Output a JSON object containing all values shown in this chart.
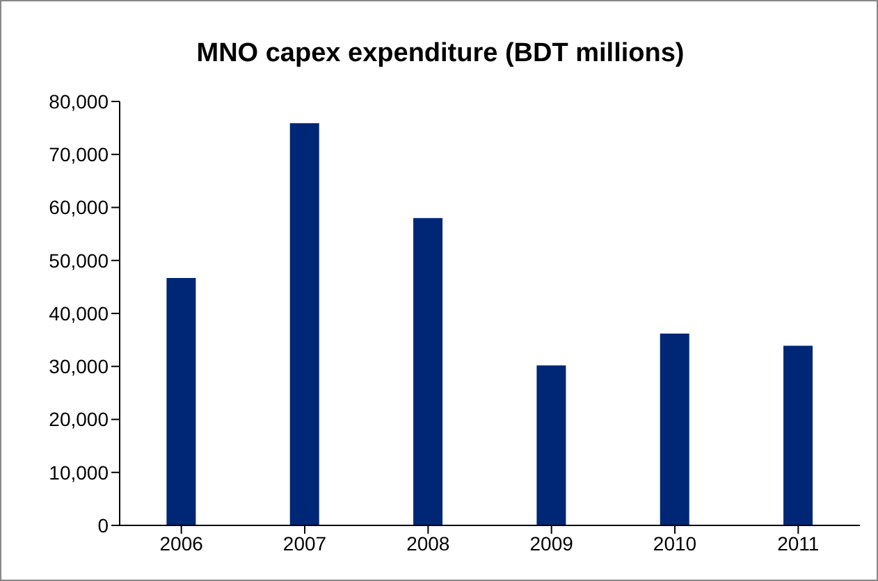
{
  "chart_data": {
    "type": "bar",
    "title": "MNO capex expenditure (BDT millions)",
    "categories": [
      "2006",
      "2007",
      "2008",
      "2009",
      "2010",
      "2011"
    ],
    "values": [
      46700,
      75900,
      58000,
      30200,
      36200,
      33900
    ],
    "color": "#002776",
    "ylim": [
      0,
      80000
    ],
    "yticks": [
      {
        "value": 0,
        "label": "0"
      },
      {
        "value": 10000,
        "label": "10,000"
      },
      {
        "value": 20000,
        "label": "20,000"
      },
      {
        "value": 30000,
        "label": "30,000"
      },
      {
        "value": 40000,
        "label": "40,000"
      },
      {
        "value": 50000,
        "label": "50,000"
      },
      {
        "value": 60000,
        "label": "60,000"
      },
      {
        "value": 70000,
        "label": "70,000"
      },
      {
        "value": 80000,
        "label": "80,000"
      }
    ],
    "grid": false,
    "legend": false
  }
}
